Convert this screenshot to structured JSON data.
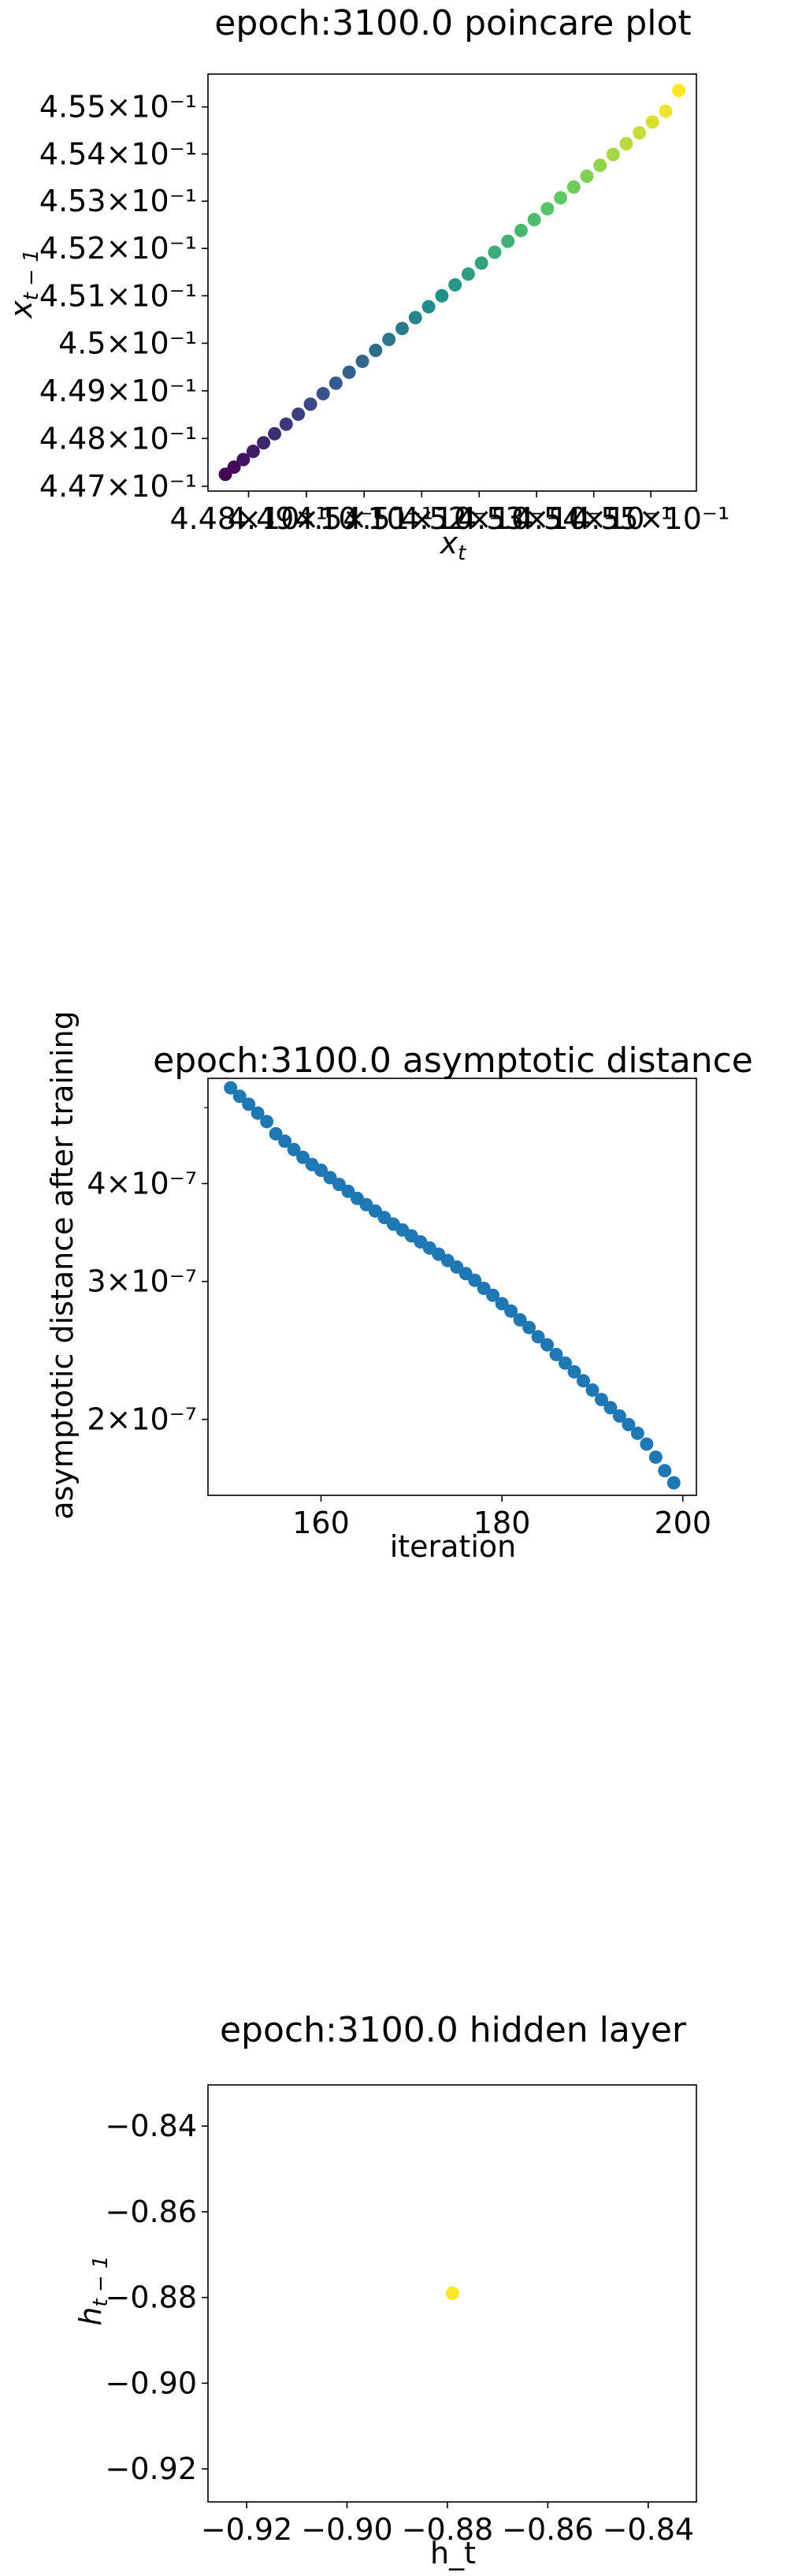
{
  "chart_data": [
    {
      "type": "scatter",
      "title": "epoch:3100.0 poincare plot",
      "xlabel_main": "x",
      "xlabel_sub": "t",
      "ylabel_main": "x",
      "ylabel_sub": "t − 1",
      "xscale": "log",
      "yscale": "log",
      "xlim": [
        0.4473,
        0.4558
      ],
      "ylim": [
        0.4469,
        0.4557
      ],
      "colormap": "viridis",
      "x_ticks": [
        {
          "value": 0.448,
          "label": "4.48×10⁻¹"
        },
        {
          "value": 0.449,
          "label": "4.49×10⁻¹"
        },
        {
          "value": 0.45,
          "label": "4.5×10⁻¹"
        },
        {
          "value": 0.451,
          "label": "4.51×10⁻¹"
        },
        {
          "value": 0.452,
          "label": "4.52×10⁻¹"
        },
        {
          "value": 0.453,
          "label": "4.53×10⁻¹"
        },
        {
          "value": 0.454,
          "label": "4.54×10⁻¹"
        },
        {
          "value": 0.455,
          "label": "4.55×10⁻¹"
        }
      ],
      "y_ticks": [
        {
          "value": 0.447,
          "label": "4.47×10⁻¹"
        },
        {
          "value": 0.448,
          "label": "4.48×10⁻¹"
        },
        {
          "value": 0.449,
          "label": "4.49×10⁻¹"
        },
        {
          "value": 0.45,
          "label": "4.5×10⁻¹"
        },
        {
          "value": 0.451,
          "label": "4.51×10⁻¹"
        },
        {
          "value": 0.452,
          "label": "4.52×10⁻¹"
        },
        {
          "value": 0.453,
          "label": "4.53×10⁻¹"
        },
        {
          "value": 0.454,
          "label": "4.54×10⁻¹"
        },
        {
          "value": 0.455,
          "label": "4.55×10⁻¹"
        }
      ],
      "points_x": [
        0.4476,
        0.44775,
        0.44791,
        0.44808,
        0.44826,
        0.44845,
        0.44865,
        0.44886,
        0.44907,
        0.44929,
        0.44951,
        0.44974,
        0.44997,
        0.4502,
        0.45043,
        0.45066,
        0.45089,
        0.45112,
        0.45135,
        0.45158,
        0.45181,
        0.45204,
        0.45227,
        0.4525,
        0.45273,
        0.45296,
        0.45319,
        0.45342,
        0.45365,
        0.45388,
        0.45411,
        0.45434,
        0.45457,
        0.4548,
        0.45503,
        0.45526,
        0.45549
      ],
      "points_y": [
        0.44725,
        0.4474,
        0.44756,
        0.44773,
        0.44791,
        0.4481,
        0.4483,
        0.44851,
        0.44872,
        0.44894,
        0.44916,
        0.44939,
        0.44962,
        0.44985,
        0.45008,
        0.45031,
        0.45054,
        0.45077,
        0.451,
        0.45123,
        0.45146,
        0.45169,
        0.45192,
        0.45215,
        0.45238,
        0.45261,
        0.45284,
        0.45307,
        0.4533,
        0.45353,
        0.45376,
        0.45399,
        0.45422,
        0.45445,
        0.45468,
        0.45491,
        0.45535
      ]
    },
    {
      "type": "scatter",
      "title": "epoch:3100.0 asymptotic distance",
      "xlabel": "iteration",
      "ylabel": "asymptotic distance after training",
      "yscale": "log",
      "xlim": [
        147.5,
        201.5
      ],
      "ylim": [
        1.6e-07,
        5.45e-07
      ],
      "color": "#1f77b4",
      "x_ticks": [
        {
          "value": 160,
          "label": "160"
        },
        {
          "value": 180,
          "label": "180"
        },
        {
          "value": 200,
          "label": "200"
        }
      ],
      "y_ticks": [
        {
          "value": 2e-07,
          "label": "2×10⁻⁷"
        },
        {
          "value": 3e-07,
          "label": "3×10⁻⁷"
        },
        {
          "value": 4e-07,
          "label": "4×10⁻⁷"
        }
      ],
      "y_minor_ticks": [
        5e-07
      ],
      "x": [
        150,
        151,
        152,
        153,
        154,
        155,
        156,
        157,
        158,
        159,
        160,
        161,
        162,
        163,
        164,
        165,
        166,
        167,
        168,
        169,
        170,
        171,
        172,
        173,
        174,
        175,
        176,
        177,
        178,
        179,
        180,
        181,
        182,
        183,
        184,
        185,
        186,
        187,
        188,
        189,
        190,
        191,
        192,
        193,
        194,
        195,
        196,
        197,
        198,
        199
      ],
      "y": [
        5.3e-07,
        5.17e-07,
        5.05e-07,
        4.92e-07,
        4.8e-07,
        4.63e-07,
        4.53e-07,
        4.42e-07,
        4.32e-07,
        4.23e-07,
        4.16e-07,
        4.07e-07,
        3.99e-07,
        3.91e-07,
        3.83e-07,
        3.76e-07,
        3.69e-07,
        3.62e-07,
        3.55e-07,
        3.49e-07,
        3.43e-07,
        3.37e-07,
        3.31e-07,
        3.25e-07,
        3.19e-07,
        3.13e-07,
        3.07e-07,
        3.01e-07,
        2.94e-07,
        2.88e-07,
        2.81e-07,
        2.75e-07,
        2.68e-07,
        2.62e-07,
        2.55e-07,
        2.49e-07,
        2.42e-07,
        2.36e-07,
        2.3e-07,
        2.24e-07,
        2.18e-07,
        2.12e-07,
        2.07e-07,
        2.02e-07,
        1.97e-07,
        1.92e-07,
        1.86e-07,
        1.79e-07,
        1.72e-07,
        1.66e-07
      ]
    },
    {
      "type": "scatter",
      "title": "epoch:3100.0 hidden layer",
      "xlabel": "h_t",
      "ylabel_main": "h",
      "ylabel_sub": "t − 1",
      "xlim": [
        -0.9277,
        -0.8304
      ],
      "ylim": [
        -0.9277,
        -0.8304
      ],
      "color": "#fde725",
      "x_ticks": [
        {
          "value": -0.92,
          "label": "−0.92"
        },
        {
          "value": -0.9,
          "label": "−0.90"
        },
        {
          "value": -0.88,
          "label": "−0.88"
        },
        {
          "value": -0.86,
          "label": "−0.86"
        },
        {
          "value": -0.84,
          "label": "−0.84"
        }
      ],
      "y_ticks": [
        {
          "value": -0.92,
          "label": "−0.92"
        },
        {
          "value": -0.9,
          "label": "−0.90"
        },
        {
          "value": -0.88,
          "label": "−0.88"
        },
        {
          "value": -0.86,
          "label": "−0.86"
        },
        {
          "value": -0.84,
          "label": "−0.84"
        }
      ],
      "x": [
        -0.879
      ],
      "y": [
        -0.879
      ]
    }
  ]
}
